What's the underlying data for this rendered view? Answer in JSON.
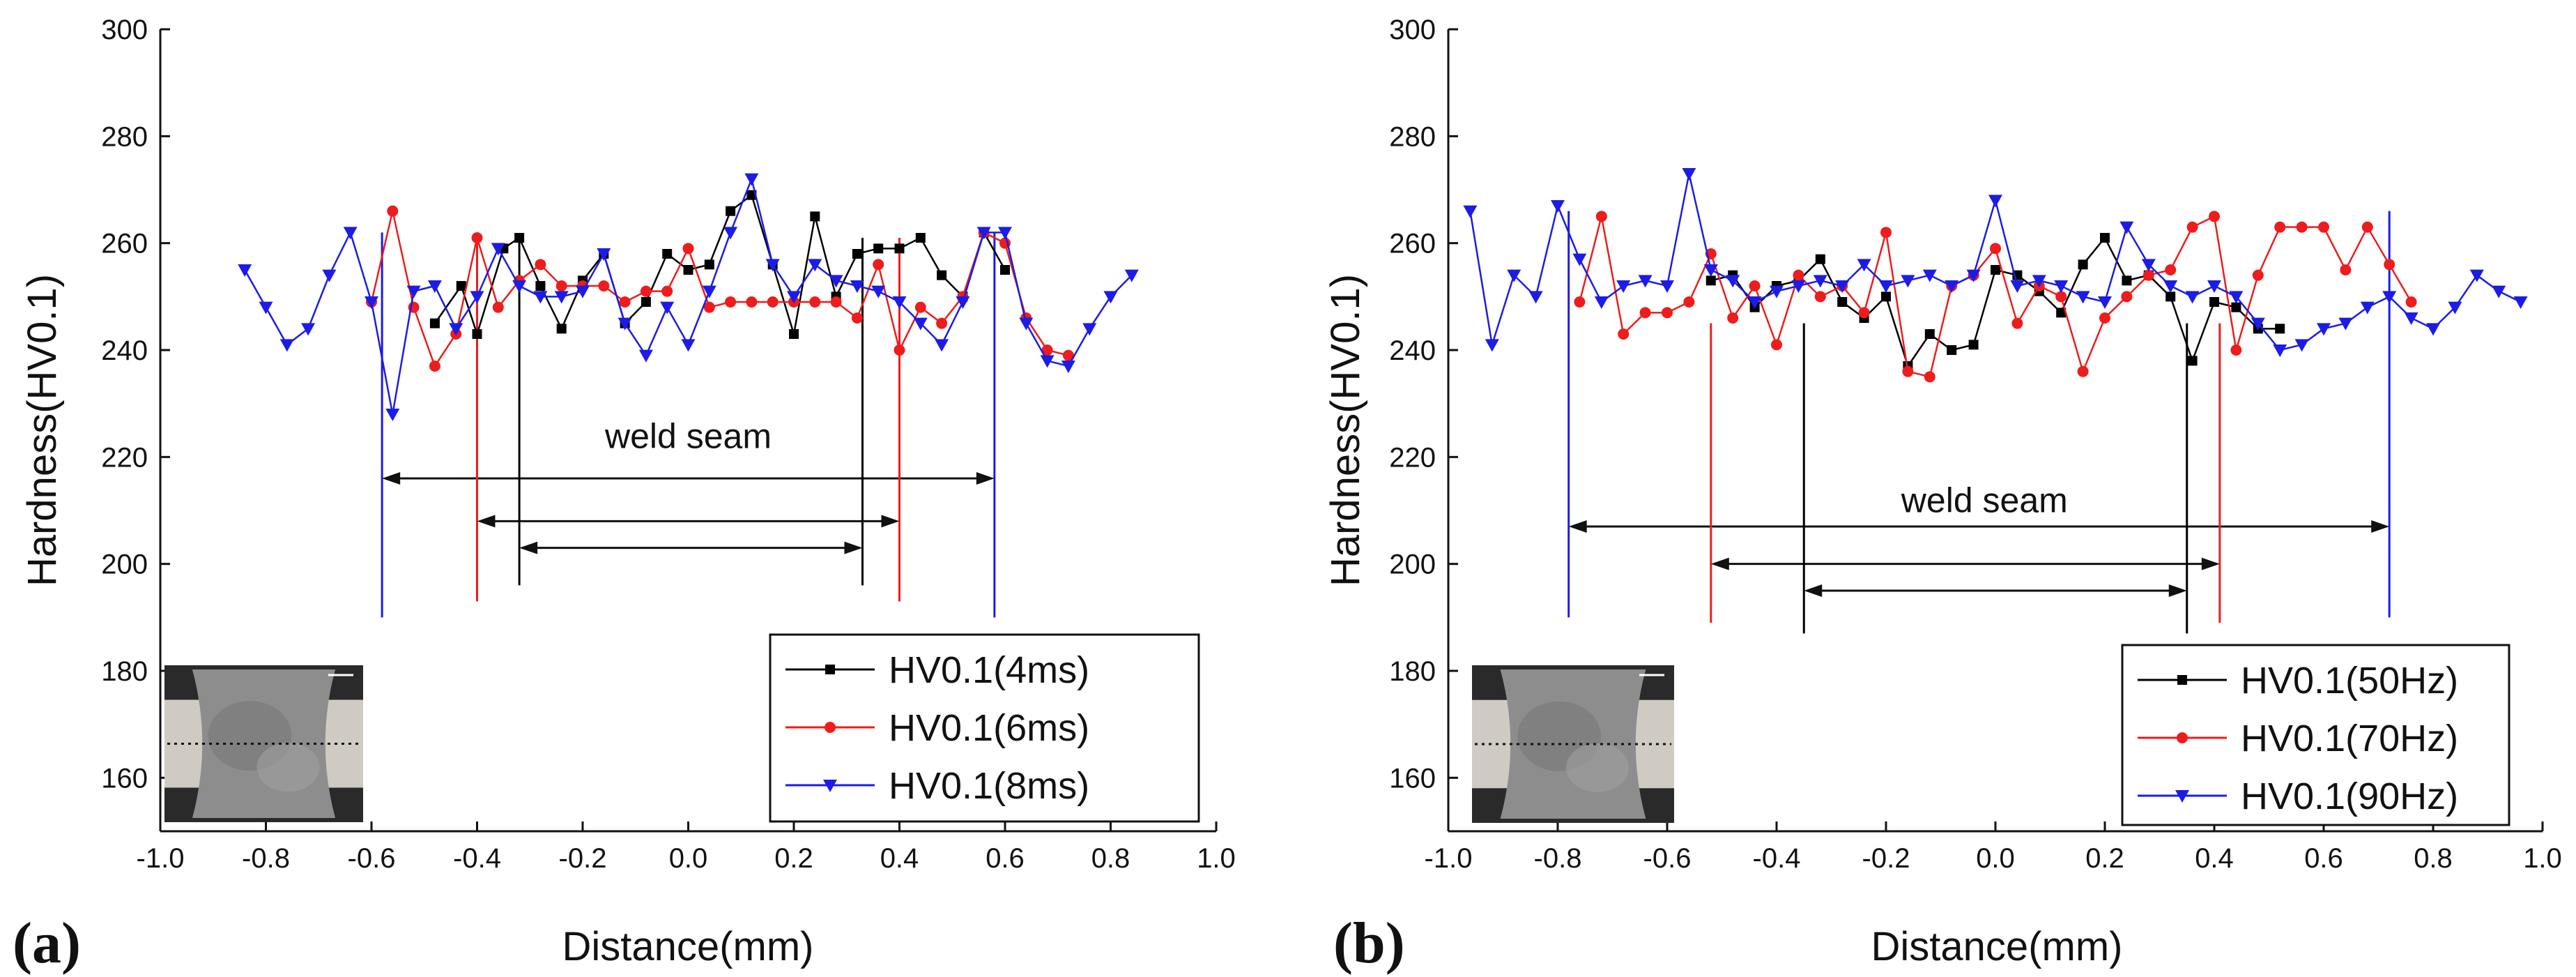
{
  "chart_data": [
    {
      "type": "line",
      "panel_label": "(a)",
      "xlabel": "Distance(mm)",
      "ylabel": "Hardness(HV0.1)",
      "xlim": [
        -1.0,
        1.0
      ],
      "ylim": [
        150,
        300
      ],
      "xticks": [
        -1.0,
        -0.8,
        -0.6,
        -0.4,
        -0.2,
        0.0,
        0.2,
        0.4,
        0.6,
        0.8,
        1.0
      ],
      "yticks": [
        160,
        180,
        200,
        220,
        240,
        260,
        280,
        300
      ],
      "annotation": "weld seam",
      "series": [
        {
          "name": "HV0.1(4ms)",
          "color": "#000000",
          "marker": "square",
          "x": [
            -0.48,
            -0.43,
            -0.4,
            -0.35,
            -0.32,
            -0.28,
            -0.24,
            -0.2,
            -0.16,
            -0.12,
            -0.08,
            -0.04,
            0.0,
            0.04,
            0.08,
            0.12,
            0.16,
            0.2,
            0.24,
            0.28,
            0.32,
            0.36,
            0.4,
            0.44,
            0.48,
            0.52,
            0.56,
            0.6
          ],
          "y": [
            245,
            252,
            243,
            259,
            261,
            252,
            244,
            253,
            258,
            245,
            249,
            258,
            255,
            256,
            266,
            269,
            256,
            243,
            265,
            250,
            258,
            259,
            259,
            261,
            254,
            250,
            262,
            255
          ]
        },
        {
          "name": "HV0.1(6ms)",
          "color": "#ee1c1c",
          "marker": "circle",
          "x": [
            -0.6,
            -0.56,
            -0.52,
            -0.48,
            -0.44,
            -0.4,
            -0.36,
            -0.32,
            -0.28,
            -0.24,
            -0.2,
            -0.16,
            -0.12,
            -0.08,
            -0.04,
            0.0,
            0.04,
            0.08,
            0.12,
            0.16,
            0.2,
            0.24,
            0.28,
            0.32,
            0.36,
            0.4,
            0.44,
            0.48,
            0.52,
            0.56,
            0.6,
            0.64,
            0.68,
            0.72
          ],
          "y": [
            249,
            266,
            248,
            237,
            243,
            261,
            248,
            253,
            256,
            252,
            252,
            252,
            249,
            251,
            251,
            259,
            248,
            249,
            249,
            249,
            249,
            249,
            249,
            246,
            256,
            240,
            248,
            245,
            250,
            262,
            260,
            246,
            240,
            239
          ]
        },
        {
          "name": "HV0.1(8ms)",
          "color": "#1c1ce6",
          "marker": "triangle-down",
          "x": [
            -0.84,
            -0.8,
            -0.76,
            -0.72,
            -0.68,
            -0.64,
            -0.6,
            -0.56,
            -0.52,
            -0.48,
            -0.44,
            -0.4,
            -0.36,
            -0.32,
            -0.28,
            -0.24,
            -0.2,
            -0.16,
            -0.12,
            -0.08,
            -0.04,
            0.0,
            0.04,
            0.08,
            0.12,
            0.16,
            0.2,
            0.24,
            0.28,
            0.32,
            0.36,
            0.4,
            0.44,
            0.48,
            0.52,
            0.56,
            0.6,
            0.64,
            0.68,
            0.72,
            0.76,
            0.8,
            0.84
          ],
          "y": [
            255,
            248,
            241,
            244,
            254,
            262,
            249,
            228,
            251,
            252,
            244,
            250,
            259,
            252,
            250,
            250,
            251,
            258,
            245,
            239,
            248,
            241,
            251,
            262,
            272,
            256,
            250,
            256,
            253,
            252,
            251,
            249,
            245,
            241,
            249,
            262,
            262,
            245,
            238,
            237,
            244,
            250,
            254
          ]
        }
      ]
    },
    {
      "type": "line",
      "panel_label": "(b)",
      "xlabel": "Distance(mm)",
      "ylabel": "Hardness(HV0.1)",
      "xlim": [
        -1.0,
        1.0
      ],
      "ylim": [
        150,
        300
      ],
      "xticks": [
        -1.0,
        -0.8,
        -0.6,
        -0.4,
        -0.2,
        0.0,
        0.2,
        0.4,
        0.6,
        0.8,
        1.0
      ],
      "yticks": [
        160,
        180,
        200,
        220,
        240,
        260,
        280,
        300
      ],
      "annotation": "weld seam",
      "series": [
        {
          "name": "HV0.1(50Hz)",
          "color": "#000000",
          "marker": "square",
          "x": [
            -0.52,
            -0.48,
            -0.44,
            -0.4,
            -0.36,
            -0.32,
            -0.28,
            -0.24,
            -0.2,
            -0.16,
            -0.12,
            -0.08,
            -0.04,
            0.0,
            0.04,
            0.08,
            0.12,
            0.16,
            0.2,
            0.24,
            0.28,
            0.32,
            0.36,
            0.4,
            0.44,
            0.48,
            0.52
          ],
          "y": [
            253,
            254,
            248,
            252,
            253,
            257,
            249,
            246,
            250,
            237,
            243,
            240,
            241,
            255,
            254,
            251,
            247,
            256,
            261,
            253,
            254,
            250,
            238,
            249,
            248,
            244,
            244
          ]
        },
        {
          "name": "HV0.1(70Hz)",
          "color": "#ee1c1c",
          "marker": "circle",
          "x": [
            -0.76,
            -0.72,
            -0.68,
            -0.64,
            -0.6,
            -0.56,
            -0.52,
            -0.48,
            -0.44,
            -0.4,
            -0.36,
            -0.32,
            -0.28,
            -0.24,
            -0.2,
            -0.16,
            -0.12,
            -0.08,
            -0.04,
            0.0,
            0.04,
            0.08,
            0.12,
            0.16,
            0.2,
            0.24,
            0.28,
            0.32,
            0.36,
            0.4,
            0.44,
            0.48,
            0.52,
            0.56,
            0.6,
            0.64,
            0.68,
            0.72,
            0.76
          ],
          "y": [
            249,
            265,
            243,
            247,
            247,
            249,
            258,
            246,
            252,
            241,
            254,
            250,
            252,
            247,
            262,
            236,
            235,
            252,
            254,
            259,
            245,
            252,
            250,
            236,
            246,
            250,
            254,
            255,
            263,
            265,
            240,
            254,
            263,
            263,
            263,
            255,
            263,
            256,
            249
          ]
        },
        {
          "name": "HV0.1(90Hz)",
          "color": "#1c1ce6",
          "marker": "triangle-down",
          "x": [
            -0.96,
            -0.92,
            -0.88,
            -0.84,
            -0.8,
            -0.76,
            -0.72,
            -0.68,
            -0.64,
            -0.6,
            -0.56,
            -0.52,
            -0.48,
            -0.44,
            -0.4,
            -0.36,
            -0.32,
            -0.28,
            -0.24,
            -0.2,
            -0.16,
            -0.12,
            -0.08,
            -0.04,
            0.0,
            0.04,
            0.08,
            0.12,
            0.16,
            0.2,
            0.24,
            0.28,
            0.32,
            0.36,
            0.4,
            0.44,
            0.48,
            0.52,
            0.56,
            0.6,
            0.64,
            0.68,
            0.72,
            0.76,
            0.8,
            0.84,
            0.88,
            0.92,
            0.96
          ],
          "y": [
            266,
            241,
            254,
            250,
            267,
            257,
            249,
            252,
            253,
            252,
            273,
            255,
            253,
            249,
            251,
            252,
            253,
            252,
            256,
            252,
            253,
            254,
            252,
            254,
            268,
            252,
            253,
            252,
            250,
            249,
            263,
            256,
            252,
            250,
            252,
            250,
            245,
            240,
            241,
            244,
            245,
            248,
            250,
            246,
            244,
            248,
            254,
            251,
            249
          ]
        }
      ]
    }
  ]
}
